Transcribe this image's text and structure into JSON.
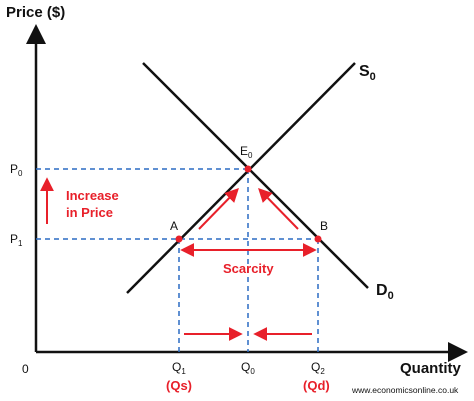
{
  "axes": {
    "y_label": "Price ($)",
    "x_label": "Quantity",
    "origin": "0"
  },
  "price_ticks": {
    "p0": {
      "main": "P",
      "sub": "0"
    },
    "p1": {
      "main": "P",
      "sub": "1"
    }
  },
  "quantity_ticks": {
    "q1": {
      "main": "Q",
      "sub": "1"
    },
    "q0": {
      "main": "Q",
      "sub": "0"
    },
    "q2": {
      "main": "Q",
      "sub": "2"
    }
  },
  "curves": {
    "supply": {
      "main": "S",
      "sub": "0"
    },
    "demand": {
      "main": "D",
      "sub": "0"
    }
  },
  "points": {
    "equilibrium": {
      "main": "E",
      "sub": "0"
    },
    "a": "A",
    "b": "B"
  },
  "annotations": {
    "increase_line1": "Increase",
    "increase_line2": "in Price",
    "scarcity": "Scarcity",
    "qs": "(Qs)",
    "qd": "(Qd)"
  },
  "credit": "www.economicsonline.co.uk",
  "colors": {
    "curve": "#111111",
    "guide": "#2b6cc4",
    "accent": "#e8202a"
  }
}
